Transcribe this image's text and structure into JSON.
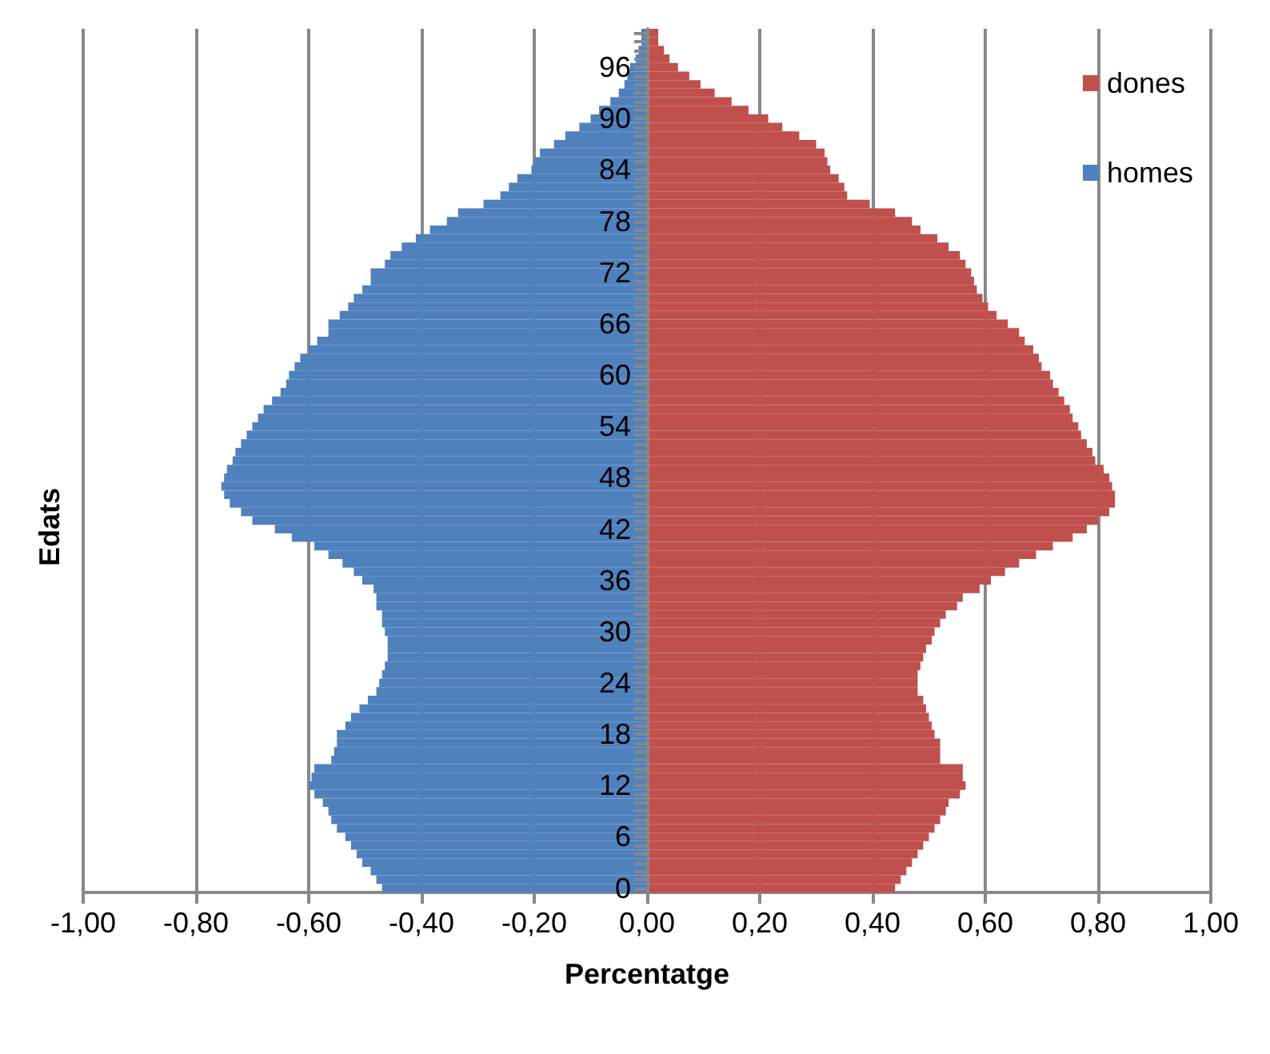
{
  "chart_data": {
    "type": "bar",
    "orientation": "horizontal",
    "stacked": true,
    "xlabel": "Percentatge",
    "ylabel": "Edats",
    "categories": [
      null,
      null,
      null,
      null,
      "96",
      null,
      null,
      null,
      null,
      null,
      "90",
      null,
      null,
      null,
      null,
      null,
      "84",
      null,
      null,
      null,
      null,
      null,
      "78",
      null,
      null,
      null,
      null,
      null,
      "72",
      null,
      null,
      null,
      null,
      null,
      "66",
      null,
      null,
      null,
      null,
      null,
      "60",
      null,
      null,
      null,
      null,
      null,
      "54",
      null,
      null,
      null,
      null,
      null,
      "48",
      null,
      null,
      null,
      null,
      null,
      "42",
      null,
      null,
      null,
      null,
      null,
      "36",
      null,
      null,
      null,
      null,
      null,
      "30",
      null,
      null,
      null,
      null,
      null,
      "24",
      null,
      null,
      null,
      null,
      null,
      "18",
      null,
      null,
      null,
      null,
      null,
      "12",
      null,
      null,
      null,
      null,
      null,
      "6",
      null,
      null,
      null,
      null,
      null,
      "0"
    ],
    "series": [
      {
        "name": "dones",
        "color": "#c0504d",
        "values": [
          0.02,
          0.02,
          0.03,
          0.04,
          0.055,
          0.075,
          0.095,
          0.12,
          0.15,
          0.18,
          0.215,
          0.24,
          0.27,
          0.3,
          0.315,
          0.32,
          0.325,
          0.34,
          0.35,
          0.355,
          0.395,
          0.44,
          0.47,
          0.485,
          0.515,
          0.535,
          0.555,
          0.565,
          0.575,
          0.58,
          0.585,
          0.595,
          0.605,
          0.62,
          0.64,
          0.66,
          0.67,
          0.685,
          0.695,
          0.7,
          0.715,
          0.72,
          0.73,
          0.74,
          0.75,
          0.755,
          0.765,
          0.77,
          0.78,
          0.79,
          0.795,
          0.81,
          0.82,
          0.825,
          0.83,
          0.83,
          0.82,
          0.8,
          0.78,
          0.755,
          0.72,
          0.69,
          0.66,
          0.635,
          0.61,
          0.59,
          0.56,
          0.55,
          0.53,
          0.52,
          0.51,
          0.505,
          0.495,
          0.49,
          0.485,
          0.48,
          0.48,
          0.48,
          0.49,
          0.495,
          0.5,
          0.505,
          0.51,
          0.52,
          0.52,
          0.52,
          0.56,
          0.56,
          0.565,
          0.555,
          0.535,
          0.53,
          0.52,
          0.51,
          0.5,
          0.49,
          0.48,
          0.47,
          0.46,
          0.45,
          0.44
        ]
      },
      {
        "name": "homes",
        "color": "#4f81bd",
        "values": [
          -0.01,
          -0.01,
          -0.015,
          -0.02,
          -0.03,
          -0.035,
          -0.04,
          -0.05,
          -0.065,
          -0.085,
          -0.1,
          -0.12,
          -0.145,
          -0.165,
          -0.19,
          -0.2,
          -0.205,
          -0.23,
          -0.245,
          -0.26,
          -0.29,
          -0.335,
          -0.355,
          -0.385,
          -0.41,
          -0.435,
          -0.455,
          -0.465,
          -0.49,
          -0.49,
          -0.505,
          -0.52,
          -0.53,
          -0.545,
          -0.565,
          -0.565,
          -0.585,
          -0.6,
          -0.615,
          -0.625,
          -0.635,
          -0.64,
          -0.65,
          -0.665,
          -0.68,
          -0.69,
          -0.7,
          -0.71,
          -0.72,
          -0.73,
          -0.735,
          -0.745,
          -0.75,
          -0.755,
          -0.75,
          -0.74,
          -0.72,
          -0.7,
          -0.66,
          -0.63,
          -0.59,
          -0.565,
          -0.54,
          -0.52,
          -0.505,
          -0.485,
          -0.48,
          -0.48,
          -0.47,
          -0.47,
          -0.465,
          -0.46,
          -0.46,
          -0.46,
          -0.465,
          -0.47,
          -0.475,
          -0.48,
          -0.495,
          -0.51,
          -0.525,
          -0.535,
          -0.55,
          -0.55,
          -0.555,
          -0.56,
          -0.59,
          -0.595,
          -0.6,
          -0.59,
          -0.575,
          -0.565,
          -0.56,
          -0.55,
          -0.535,
          -0.525,
          -0.515,
          -0.505,
          -0.49,
          -0.48,
          -0.47
        ]
      }
    ],
    "xlim": [
      -1,
      1
    ],
    "xticks": [
      {
        "value": -1,
        "label": "-1,00"
      },
      {
        "value": -0.8,
        "label": "-0,80"
      },
      {
        "value": -0.6,
        "label": "-0,60"
      },
      {
        "value": -0.4,
        "label": "-0,40"
      },
      {
        "value": -0.2,
        "label": "-0,20"
      },
      {
        "value": 0,
        "label": "0,00"
      },
      {
        "value": 0.2,
        "label": "0,20"
      },
      {
        "value": 0.4,
        "label": "0,40"
      },
      {
        "value": 0.6,
        "label": "0,60"
      },
      {
        "value": 0.8,
        "label": "0,80"
      },
      {
        "value": 1,
        "label": "1,00"
      }
    ],
    "grid": "x",
    "legend": "top right"
  }
}
